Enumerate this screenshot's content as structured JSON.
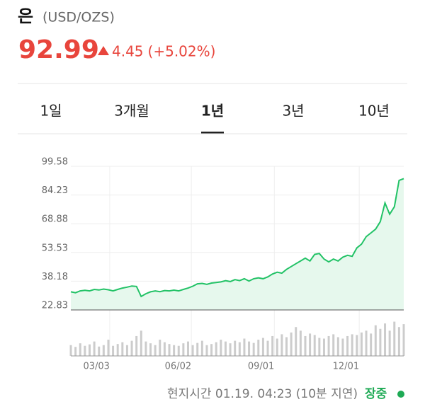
{
  "header": {
    "name": "은",
    "unit": "(USD/OZS)",
    "price": 92.99,
    "change": 4.45,
    "change_pct": "(+5.02%)"
  },
  "tabs": [
    "1일",
    "3개월",
    "1년",
    "3년",
    "10년"
  ],
  "active_tab": 2,
  "chart_data": {
    "type": "line",
    "color": "#22c266",
    "fill": "#e6f8ed",
    "values": [
      32.5,
      32.0,
      33.0,
      33.3,
      33.0,
      33.8,
      33.5,
      34.0,
      33.6,
      33.0,
      33.8,
      34.5,
      35.0,
      35.6,
      35.4,
      30.0,
      31.5,
      32.5,
      33.0,
      32.6,
      33.2,
      33.0,
      33.4,
      33.0,
      33.8,
      34.5,
      35.5,
      36.8,
      37.0,
      36.5,
      37.2,
      37.5,
      37.8,
      38.5,
      38.0,
      39.0,
      38.5,
      39.5,
      38.3,
      39.5,
      40.0,
      39.5,
      40.5,
      42.0,
      43.0,
      42.5,
      44.5,
      46.0,
      47.5,
      49.0,
      50.5,
      49.0,
      52.5,
      53.0,
      50.0,
      48.5,
      50.0,
      49.0,
      51.0,
      52.0,
      51.5,
      56.0,
      58.0,
      62.0,
      64.0,
      66.0,
      70.0,
      80.0,
      74.0,
      78.0,
      92.0,
      92.99
    ],
    "volume": [
      30,
      25,
      35,
      28,
      32,
      40,
      26,
      30,
      45,
      28,
      33,
      38,
      30,
      42,
      55,
      70,
      40,
      35,
      30,
      45,
      38,
      33,
      30,
      28,
      35,
      40,
      30,
      36,
      42,
      30,
      33,
      38,
      45,
      40,
      35,
      42,
      38,
      48,
      40,
      36,
      45,
      50,
      42,
      55,
      48,
      60,
      52,
      65,
      80,
      70,
      55,
      62,
      58,
      50,
      48,
      55,
      60,
      52,
      48,
      55,
      60,
      58,
      65,
      70,
      62,
      85,
      75,
      90,
      70,
      95,
      80,
      88
    ],
    "volume_lim": [
      0,
      100
    ],
    "xlim": [
      0,
      71
    ],
    "ylim": [
      22.83,
      99.58
    ],
    "yticks": [
      99.58,
      84.23,
      68.88,
      53.53,
      38.18,
      22.83
    ],
    "xticks": [
      {
        "value": 8.3,
        "label": "03/03"
      },
      {
        "value": 25.7,
        "label": "06/02"
      },
      {
        "value": 43.4,
        "label": "09/01"
      },
      {
        "value": 61.5,
        "label": "12/01"
      }
    ],
    "grid": true
  },
  "footer": {
    "time": "현지시간 01.19. 04:23 (10분 지연)",
    "status": "장중"
  }
}
